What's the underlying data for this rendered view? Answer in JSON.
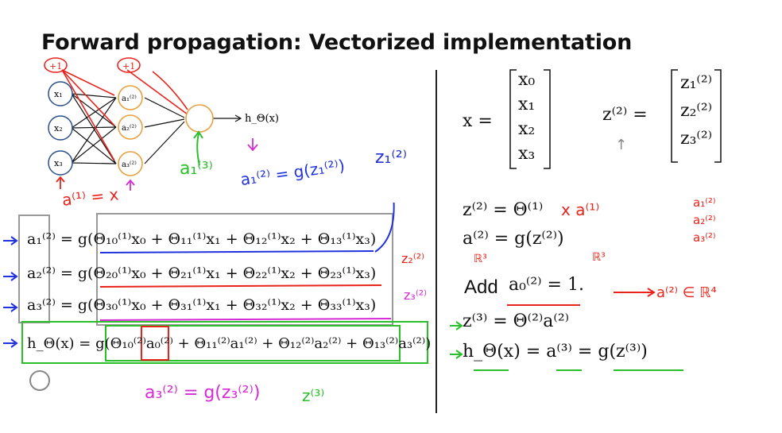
{
  "title": "Forward propagation: Vectorized implementation",
  "network": {
    "inputs": [
      "x₁",
      "x₂",
      "x₃"
    ],
    "hidden": [
      "a₁⁽²⁾",
      "a₂⁽²⁾",
      "a₃⁽²⁾"
    ],
    "bias_plus_one": "+1",
    "output_label": "h_Θ(x)"
  },
  "annotations": {
    "a1_equals_x": "a⁽¹⁾ = x",
    "a3_1": "a₁⁽³⁾",
    "a2_1_def": "a₁⁽²⁾ = g(z₁⁽²⁾)",
    "z1_2": "z₁⁽²⁾",
    "z2_2": "z₂⁽²⁾",
    "z3_2": "z₃⁽²⁾",
    "a3_2_def": "a₃⁽²⁾ = g(z₃⁽²⁾)",
    "z3": "z⁽³⁾",
    "a2_r4": "a⁽²⁾ ∈ ℝ⁴",
    "r3_a": "ℝ³",
    "r3_b": "ℝ³",
    "a_stack": "a₁⁽²⁾ a₂⁽²⁾ a₃⁽²⁾"
  },
  "left_equations": [
    "a₁⁽²⁾ = g(Θ₁₀⁽¹⁾x₀ + Θ₁₁⁽¹⁾x₁ + Θ₁₂⁽¹⁾x₂ + Θ₁₃⁽¹⁾x₃)",
    "a₂⁽²⁾ = g(Θ₂₀⁽¹⁾x₀ + Θ₂₁⁽¹⁾x₁ + Θ₂₂⁽¹⁾x₂ + Θ₂₃⁽¹⁾x₃)",
    "a₃⁽²⁾ = g(Θ₃₀⁽¹⁾x₀ + Θ₃₁⁽¹⁾x₁ + Θ₃₂⁽¹⁾x₂ + Θ₃₃⁽¹⁾x₃)",
    "h_Θ(x) = g(Θ₁₀⁽²⁾a₀⁽²⁾ + Θ₁₁⁽²⁾a₁⁽²⁾ + Θ₁₂⁽²⁾a₂⁽²⁾ + Θ₁₃⁽²⁾a₃⁽²⁾)"
  ],
  "vector_x": {
    "lhs": "x =",
    "entries": [
      "x₀",
      "x₁",
      "x₂",
      "x₃"
    ]
  },
  "vector_z": {
    "lhs": "z⁽²⁾ =",
    "entries": [
      "z₁⁽²⁾",
      "z₂⁽²⁾",
      "z₃⁽²⁾"
    ]
  },
  "right_equations": {
    "z2": "z⁽²⁾ = Θ⁽¹⁾",
    "z2_hand": "x a⁽¹⁾",
    "a2": "a⁽²⁾ = g(z⁽²⁾)",
    "add_word": "Add",
    "add_expr": "a₀⁽²⁾ = 1.",
    "z3": "z⁽³⁾ = Θ⁽²⁾a⁽²⁾",
    "h": "h_Θ(x) = a⁽³⁾ = g(z⁽³⁾)"
  }
}
